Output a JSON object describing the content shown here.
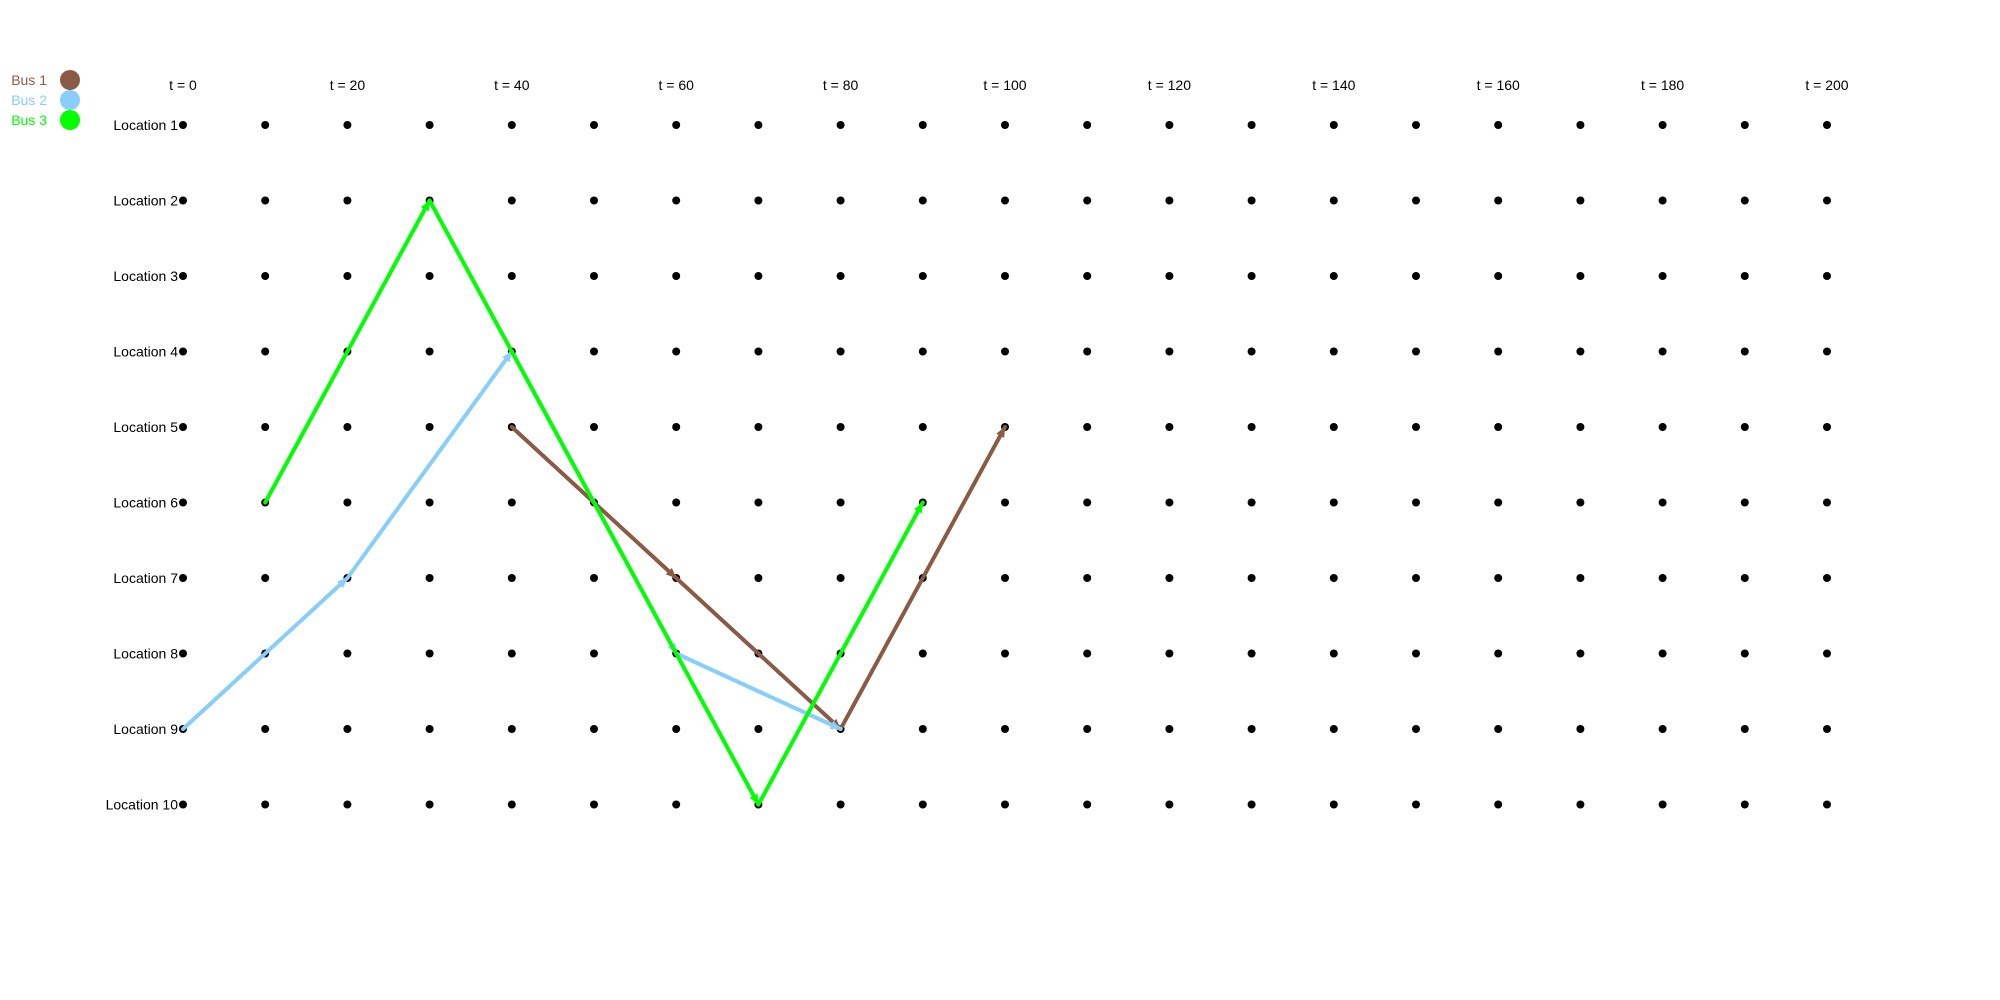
{
  "legend": [
    {
      "label": "Bus 1",
      "color": "#8B5A45"
    },
    {
      "label": "Bus 2",
      "color": "#87CEFA"
    },
    {
      "label": "Bus 3",
      "color": "#00FF00"
    }
  ],
  "time_labels": [
    "t = 0",
    "t = 20",
    "t = 40",
    "t = 60",
    "t = 80",
    "t = 100",
    "t = 120",
    "t = 140",
    "t = 160",
    "t = 180",
    "t = 200"
  ],
  "locations": [
    "Location 1",
    "Location 2",
    "Location 3",
    "Location 4",
    "Location 5",
    "Location 6",
    "Location 7",
    "Location 8",
    "Location 9",
    "Location 10"
  ],
  "time_step": 10,
  "time_max": 200,
  "routes": [
    {
      "bus": "Bus 1",
      "color": "#8B5A45",
      "points": [
        [
          40,
          5
        ],
        [
          60,
          7
        ],
        [
          80,
          9
        ],
        [
          100,
          5
        ]
      ]
    },
    {
      "bus": "Bus 2",
      "color": "#87CEFA",
      "points": [
        [
          0,
          9
        ],
        [
          20,
          7
        ],
        [
          40,
          4
        ],
        [
          60,
          8
        ],
        [
          80,
          9
        ]
      ]
    },
    {
      "bus": "Bus 3",
      "color": "#00FF00",
      "points": [
        [
          10,
          6
        ],
        [
          30,
          2
        ],
        [
          70,
          10
        ],
        [
          90,
          6
        ]
      ]
    }
  ]
}
